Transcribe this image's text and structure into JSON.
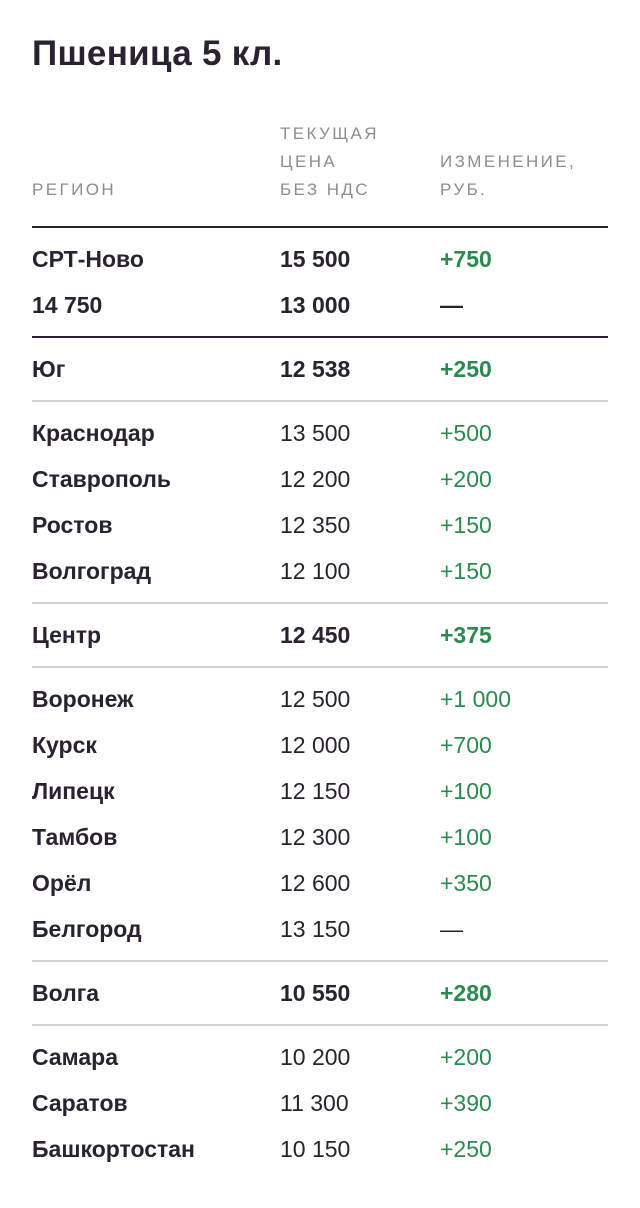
{
  "title": "Пшеница 5 кл.",
  "headers": {
    "region": "РЕГИОН",
    "price_l1": "ТЕКУЩАЯ",
    "price_l2": "ЦЕНА",
    "price_l3": "БЕЗ НДС",
    "change_l1": "ИЗМЕНЕНИЕ,",
    "change_l2": "РУБ."
  },
  "top": [
    {
      "region": "СРТ-Ново",
      "price": "15 500",
      "change": "+750"
    },
    {
      "region": "14 750",
      "price": "13 000",
      "change": "—"
    }
  ],
  "groups": [
    {
      "summary": {
        "region": "Юг",
        "price": "12 538",
        "change": "+250"
      },
      "rows": [
        {
          "region": "Краснодар",
          "price": "13 500",
          "change": "+500"
        },
        {
          "region": "Ставрополь",
          "price": "12 200",
          "change": "+200"
        },
        {
          "region": "Ростов",
          "price": "12 350",
          "change": "+150"
        },
        {
          "region": "Волгоград",
          "price": "12 100",
          "change": "+150"
        }
      ]
    },
    {
      "summary": {
        "region": "Центр",
        "price": "12 450",
        "change": "+375"
      },
      "rows": [
        {
          "region": "Воронеж",
          "price": "12 500",
          "change": "+1 000"
        },
        {
          "region": "Курск",
          "price": "12 000",
          "change": "+700"
        },
        {
          "region": "Липецк",
          "price": "12 150",
          "change": "+100"
        },
        {
          "region": "Тамбов",
          "price": "12 300",
          "change": "+100"
        },
        {
          "region": "Орёл",
          "price": "12 600",
          "change": "+350"
        },
        {
          "region": "Белгород",
          "price": "13 150",
          "change": "—"
        }
      ]
    },
    {
      "summary": {
        "region": "Волга",
        "price": "10 550",
        "change": "+280"
      },
      "rows": [
        {
          "region": "Самара",
          "price": "10 200",
          "change": "+200"
        },
        {
          "region": "Саратов",
          "price": "11 300",
          "change": "+390"
        },
        {
          "region": "Башкортостан",
          "price": "10 150",
          "change": "+250"
        }
      ]
    }
  ]
}
